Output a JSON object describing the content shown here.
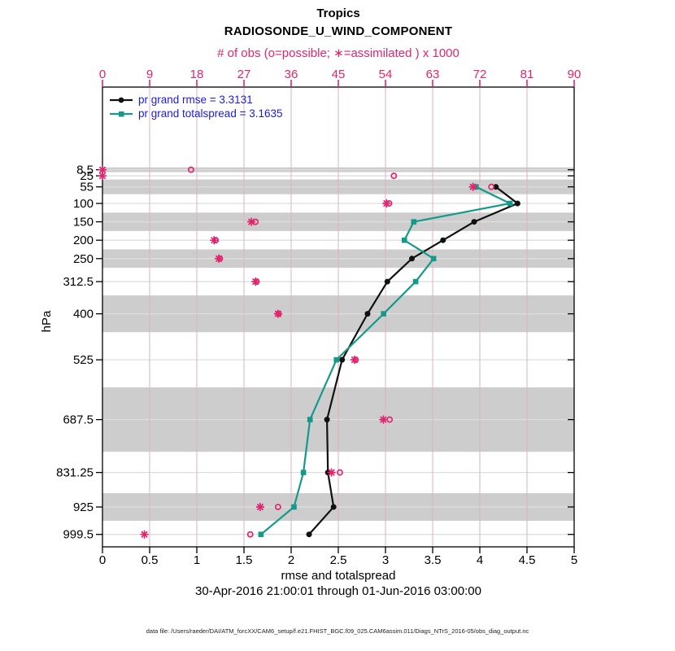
{
  "header": {
    "title": "Tropics",
    "subtitle": "RADIOSONDE_U_WIND_COMPONENT",
    "obs_axis_label": "# of obs (o=possible; ∗=assimilated ) x 1000"
  },
  "legend": {
    "rmse_label": "pr grand rmse = 3.3131",
    "totalspread_label": "pr grand totalspread = 3.1635"
  },
  "footer": {
    "xlabel": "rmse and totalspread",
    "date_range": "30-Apr-2016 21:00:01 through 01-Jun-2016 03:00:00",
    "datafile": "data file: /Users/raeder/DAI/ATM_forcXX/CAM6_setup/f.e21.FHIST_BGC.f09_025.CAM6assim.011/Diags_NTrS_2016-05/obs_diag_output.nc"
  },
  "colors": {
    "rmse": "#111111",
    "totalspread": "#14998a",
    "obs": "#e2256d",
    "legend_text": "#1b1be6",
    "band": "#cdcdcd",
    "grid_h": "#dedede",
    "grid_v": "#ddb3c0",
    "axis": "#000000"
  },
  "chart_data": {
    "type": "line",
    "title": "Tropics",
    "subtitle": "RADIOSONDE_U_WIND_COMPONENT",
    "xlabel": "rmse and totalspread",
    "xlabel_top": "# of obs (o=possible; ∗=assimilated ) x 1000",
    "ylabel": "hPa",
    "y_axis_direction": "reversed-pressure",
    "grid": true,
    "legend_position": "top-left-inside",
    "xlim_bottom": [
      0,
      5
    ],
    "xlim_top": [
      0,
      90
    ],
    "x_bottom_ticks": [
      0,
      0.5,
      1,
      1.5,
      2,
      2.5,
      3,
      3.5,
      4,
      4.5,
      5
    ],
    "x_bottom_tick_labels": [
      "0",
      "0.5",
      "1",
      "1.5",
      "2",
      "2.5",
      "3",
      "3.5",
      "4",
      "4.5",
      "5"
    ],
    "x_top_ticks": [
      0,
      9,
      18,
      27,
      36,
      45,
      54,
      63,
      72,
      81,
      90
    ],
    "x_top_tick_labels": [
      "0",
      "9",
      "18",
      "27",
      "36",
      "45",
      "54",
      "63",
      "72",
      "81",
      "90"
    ],
    "y_levels_hpa": [
      8.5,
      25,
      55,
      100,
      150,
      200,
      250,
      312.5,
      400,
      525,
      687.5,
      831.25,
      925,
      999.5
    ],
    "y_tick_labels": [
      "8.5",
      "25",
      "55",
      "100",
      "150",
      "200",
      "250",
      "312.5",
      "400",
      "525",
      "687.5",
      "831.25",
      "925",
      "999.5"
    ],
    "pressure_bin_edges": [
      2,
      15,
      35,
      75,
      125,
      175,
      225,
      275,
      350,
      450,
      600,
      775,
      887.5,
      962.5,
      1036.5
    ],
    "gray_band_bins": [
      [
        2,
        15
      ],
      [
        35,
        75
      ],
      [
        125,
        175
      ],
      [
        225,
        275
      ],
      [
        350,
        450
      ],
      [
        600,
        775
      ],
      [
        887.5,
        962.5
      ]
    ],
    "series": [
      {
        "name": "pr grand rmse",
        "grand_value": 3.3131,
        "color_key": "rmse",
        "marker": "circle",
        "values": [
          null,
          null,
          4.17,
          4.4,
          3.94,
          3.61,
          3.28,
          3.02,
          2.81,
          2.54,
          2.38,
          2.39,
          2.45,
          2.19
        ]
      },
      {
        "name": "pr grand totalspread",
        "grand_value": 3.1635,
        "color_key": "totalspread",
        "marker": "square",
        "values": [
          null,
          null,
          3.96,
          4.32,
          3.3,
          3.2,
          3.51,
          3.32,
          2.98,
          2.48,
          2.2,
          2.13,
          2.03,
          1.68
        ]
      }
    ],
    "obs_counts_x1000": {
      "possible": [
        16.9,
        55.6,
        74.2,
        54.7,
        29.2,
        21.6,
        22.4,
        29.4,
        33.6,
        48.3,
        54.8,
        45.3,
        33.5,
        28.2
      ],
      "assimilated": [
        0,
        0,
        70.7,
        54.2,
        28.4,
        21.3,
        22.2,
        29.2,
        33.5,
        48.1,
        53.6,
        43.7,
        30.1,
        8.0
      ]
    }
  }
}
